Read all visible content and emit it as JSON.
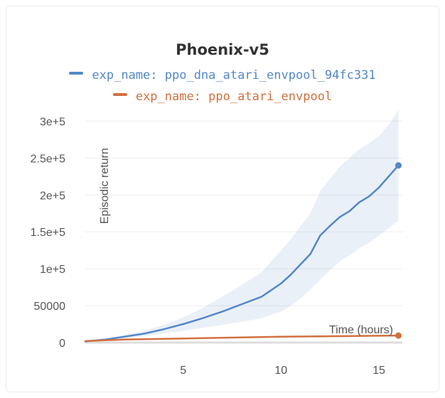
{
  "chart_data": {
    "type": "line",
    "title": "Phoenix-v5",
    "xlabel": "Time (hours)",
    "ylabel": "Episodic return",
    "xlim": [
      0,
      16.2
    ],
    "ylim": [
      0,
      310000
    ],
    "xticks": [
      5,
      10,
      15
    ],
    "xtick_labels": [
      "5",
      "10",
      "15"
    ],
    "yticks": [
      0,
      50000,
      100000,
      150000,
      200000,
      250000,
      300000
    ],
    "ytick_labels": [
      "0",
      "50000",
      "1e+5",
      "1.5e+5",
      "2e+5",
      "2.5e+5",
      "3e+5"
    ],
    "grid": "horizontal",
    "legend_position": "top-center",
    "series": [
      {
        "name": "exp_name: ppo_dna_atari_envpool_94fc331",
        "color": "#5387c9",
        "x": [
          0,
          1,
          2,
          3,
          4,
          5,
          6,
          7,
          8,
          9,
          10,
          10.5,
          11,
          11.5,
          12,
          12.5,
          13,
          13.5,
          14,
          14.5,
          15,
          15.5,
          16
        ],
        "y": [
          1500,
          4000,
          8000,
          12000,
          18000,
          25000,
          33000,
          42000,
          52000,
          62000,
          80000,
          92000,
          106000,
          120000,
          145000,
          158000,
          170000,
          178000,
          190000,
          198000,
          210000,
          225000,
          240000
        ],
        "lower": [
          1000,
          3000,
          5500,
          8500,
          12000,
          16000,
          20000,
          24000,
          28000,
          33000,
          42000,
          50000,
          60000,
          72000,
          85000,
          98000,
          110000,
          118000,
          128000,
          135000,
          145000,
          155000,
          165000
        ],
        "upper": [
          2000,
          5000,
          10500,
          16000,
          24000,
          34000,
          47000,
          62000,
          78000,
          95000,
          125000,
          140000,
          158000,
          175000,
          205000,
          222000,
          238000,
          250000,
          262000,
          270000,
          280000,
          295000,
          315000
        ]
      },
      {
        "name": "exp_name: ppo_atari_envpool",
        "color": "#d2703f",
        "x": [
          0,
          1,
          2,
          4,
          6,
          8,
          10,
          12,
          14,
          16
        ],
        "y": [
          2000,
          3200,
          4000,
          5000,
          6000,
          7000,
          8000,
          8500,
          9000,
          9500
        ]
      }
    ]
  }
}
